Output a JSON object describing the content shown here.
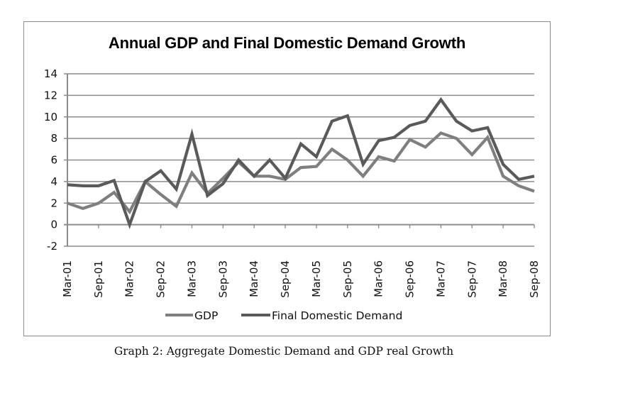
{
  "caption": "Graph 2: Aggregate Domestic Demand and GDP real Growth",
  "chart_data": {
    "type": "line",
    "title": "Annual GDP and Final Domestic Demand Growth",
    "xlabel": "",
    "ylabel": "",
    "ylim": [
      -2,
      14
    ],
    "yticks": [
      "14",
      "12",
      "10",
      "8",
      "6",
      "4",
      "2",
      "0",
      "-2"
    ],
    "ytick_values": [
      14,
      12,
      10,
      8,
      6,
      4,
      2,
      0,
      -2
    ],
    "grid": true,
    "legend_position": "bottom",
    "x": [
      "Mar-01",
      "Jun-01",
      "Sep-01",
      "Dec-01",
      "Mar-02",
      "Jun-02",
      "Sep-02",
      "Dec-02",
      "Mar-03",
      "Jun-03",
      "Sep-03",
      "Dec-03",
      "Mar-04",
      "Jun-04",
      "Sep-04",
      "Dec-04",
      "Mar-05",
      "Jun-05",
      "Sep-05",
      "Dec-05",
      "Mar-06",
      "Jun-06",
      "Sep-06",
      "Dec-06",
      "Mar-07",
      "Jun-07",
      "Sep-07",
      "Dec-07",
      "Mar-08",
      "Jun-08",
      "Sep-08"
    ],
    "xtick_labels": [
      "Mar-01",
      "Sep-01",
      "Mar-02",
      "Sep-02",
      "Mar-03",
      "Sep-03",
      "Mar-04",
      "Sep-04",
      "Mar-05",
      "Sep-05",
      "Mar-06",
      "Sep-06",
      "Mar-07",
      "Sep-07",
      "Mar-08",
      "Sep-08"
    ],
    "series": [
      {
        "name": "GDP",
        "color": "#7f7f7f",
        "values": [
          2.0,
          1.5,
          2.0,
          3.0,
          1.2,
          4.0,
          2.8,
          1.7,
          4.8,
          2.9,
          4.3,
          5.8,
          4.5,
          4.5,
          4.2,
          5.3,
          5.4,
          7.0,
          6.0,
          4.5,
          6.3,
          5.9,
          7.9,
          7.2,
          8.5,
          8.0,
          6.5,
          8.1,
          4.5,
          3.6,
          3.1
        ]
      },
      {
        "name": "Final Domestic Demand",
        "color": "#5a5a5a",
        "values": [
          3.7,
          3.6,
          3.6,
          4.1,
          0.0,
          4.0,
          5.0,
          3.3,
          8.4,
          2.7,
          3.8,
          6.0,
          4.5,
          6.0,
          4.3,
          7.5,
          6.3,
          9.6,
          10.1,
          5.6,
          7.8,
          8.1,
          9.2,
          9.6,
          11.6,
          9.6,
          8.7,
          9.0,
          5.6,
          4.2,
          4.5
        ]
      }
    ]
  }
}
